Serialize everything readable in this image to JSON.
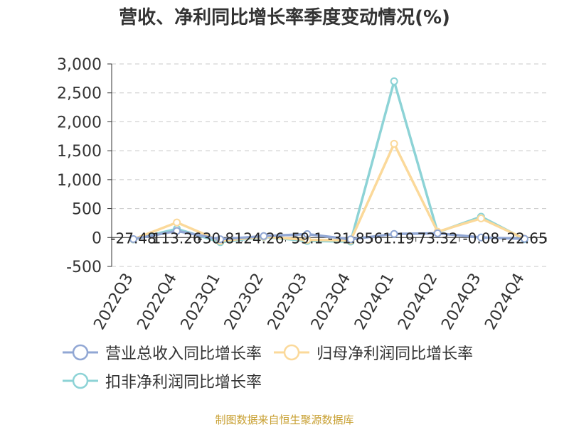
{
  "title": "营收、净利同比增长率季度变动情况(%)",
  "source_text": "制图数据来自恒生聚源数据库",
  "chart_data": {
    "type": "line",
    "categories": [
      "2022Q3",
      "2022Q4",
      "2023Q1",
      "2023Q2",
      "2023Q3",
      "2023Q4",
      "2024Q1",
      "2024Q2",
      "2024Q3",
      "2024Q4"
    ],
    "y_ticks": [
      "3,000",
      "2,500",
      "2,000",
      "1,500",
      "1,000",
      "500",
      "0",
      "-500"
    ],
    "ylim": [
      -500,
      3000
    ],
    "grid": true,
    "legend_position": "bottom",
    "series": [
      {
        "name": "营业总收入同比增长率",
        "color": "#91a7d4",
        "values": [
          -27.48,
          113.26,
          -30.81,
          24.26,
          59.1,
          -31.85,
          61.19,
          73.32,
          -0.08,
          -22.65
        ]
      },
      {
        "name": "归母净利润同比增长率",
        "color": "#fbd99a",
        "values": [
          -30,
          260,
          -60,
          15,
          -40,
          -50,
          1620,
          100,
          330,
          -20
        ]
      },
      {
        "name": "扣非净利润同比增长率",
        "color": "#8dd3d6",
        "values": [
          -35,
          150,
          -80,
          10,
          -60,
          -70,
          2700,
          90,
          360,
          -30
        ]
      }
    ],
    "data_labels": [
      "-27.48",
      "113.26",
      "-30.81",
      "24.26",
      "59.1",
      "-31.85",
      "61.19",
      "73.32",
      "-0.08",
      "-22.65"
    ]
  }
}
